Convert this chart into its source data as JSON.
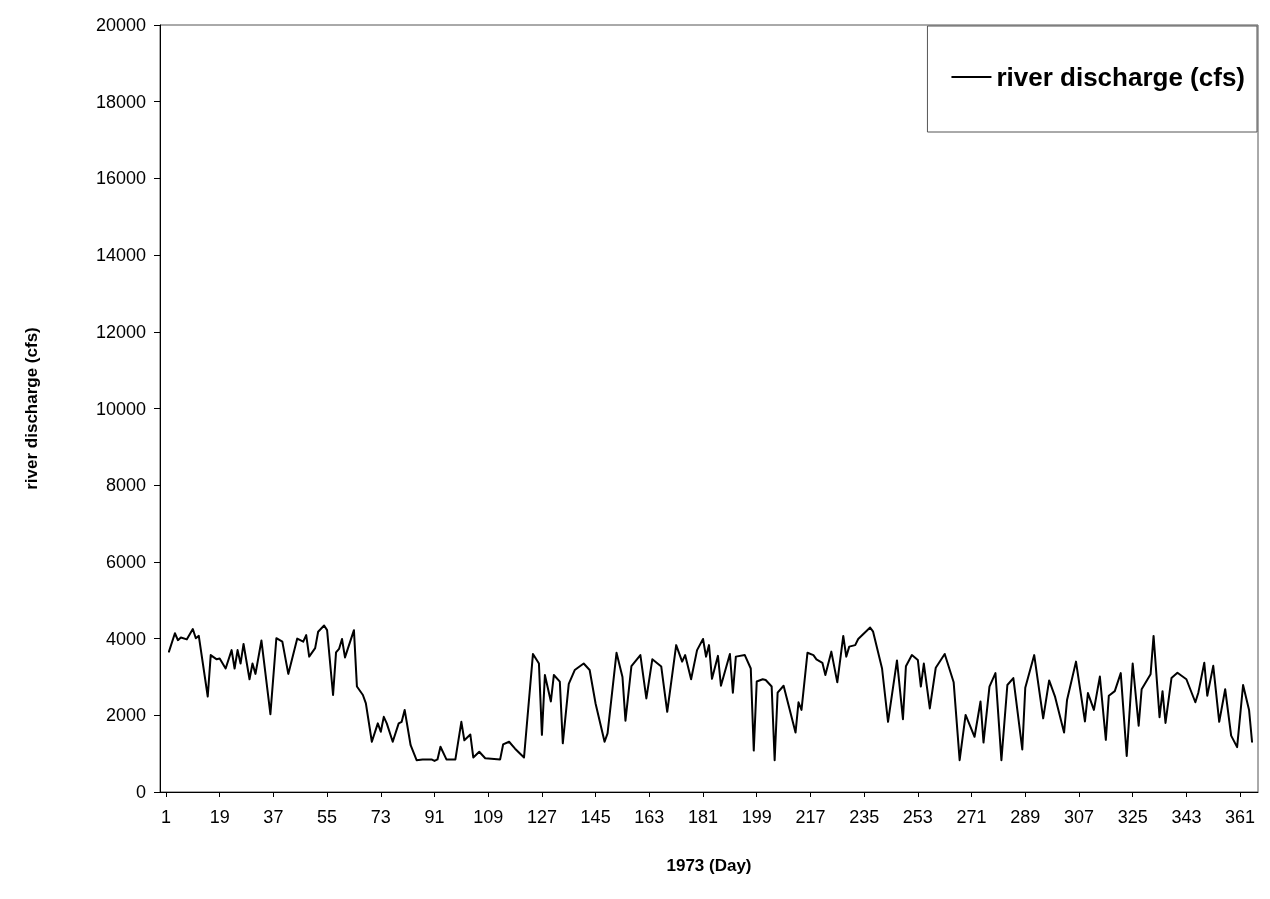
{
  "chart_data": {
    "type": "line",
    "xlabel": "1973 (Day)",
    "ylabel": "river discharge (cfs)",
    "xlim": [
      -1,
      367
    ],
    "xticks": [
      1,
      19,
      37,
      55,
      73,
      91,
      109,
      127,
      145,
      163,
      181,
      199,
      217,
      235,
      253,
      271,
      289,
      307,
      325,
      343,
      361
    ],
    "ylim": [
      0,
      20000
    ],
    "yticks": [
      0,
      2000,
      4000,
      6000,
      8000,
      10000,
      12000,
      14000,
      16000,
      18000,
      20000
    ],
    "grid": false,
    "legend": "top right",
    "marker": "none",
    "line_style": "solid",
    "series": [
      {
        "name": "river discharge (cfs)",
        "color": "#000000",
        "x": [
          2,
          4,
          5,
          6,
          8,
          10,
          11,
          12,
          15,
          16,
          18,
          19,
          21,
          23,
          24,
          25,
          26,
          27,
          29,
          30,
          31,
          33,
          36,
          38,
          40,
          42,
          45,
          47,
          48,
          49,
          51,
          52,
          54,
          55,
          57,
          58,
          59,
          60,
          61,
          64,
          65,
          67,
          68,
          70,
          72,
          73,
          74,
          75,
          77,
          79,
          80,
          81,
          83,
          85,
          87,
          90,
          91,
          92,
          93,
          95,
          98,
          100,
          101,
          103,
          104,
          106,
          108,
          113,
          114,
          116,
          118,
          121,
          124,
          126,
          127,
          128,
          130,
          131,
          133,
          134,
          136,
          138,
          141,
          143,
          145,
          148,
          149,
          152,
          154,
          155,
          157,
          160,
          162,
          164,
          167,
          169,
          172,
          174,
          175,
          177,
          179,
          181,
          182,
          183,
          184,
          186,
          187,
          190,
          191,
          192,
          195,
          197,
          198,
          199,
          201,
          202,
          204,
          205,
          206,
          208,
          212,
          213,
          214,
          216,
          218,
          219,
          221,
          222,
          224,
          226,
          228,
          229,
          230,
          232,
          233,
          237,
          238,
          241,
          243,
          246,
          248,
          249,
          251,
          253,
          254,
          255,
          257,
          259,
          262,
          265,
          267,
          269,
          272,
          274,
          275,
          277,
          279,
          281,
          283,
          285,
          288,
          289,
          292,
          295,
          297,
          299,
          302,
          303,
          306,
          309,
          310,
          312,
          314,
          316,
          317,
          319,
          321,
          323,
          325,
          327,
          328,
          331,
          332,
          334,
          335,
          336,
          338,
          340,
          343,
          346,
          347,
          349,
          350,
          352,
          354,
          356,
          358,
          360,
          362,
          364,
          365
        ],
        "values": [
          3660,
          4140,
          3960,
          4030,
          3980,
          4250,
          4010,
          4070,
          2490,
          3570,
          3460,
          3480,
          3220,
          3700,
          3220,
          3700,
          3350,
          3860,
          2940,
          3350,
          3080,
          3950,
          2030,
          4010,
          3920,
          3080,
          4000,
          3920,
          4090,
          3530,
          3750,
          4180,
          4340,
          4220,
          2530,
          3640,
          3730,
          3990,
          3510,
          4220,
          2750,
          2530,
          2310,
          1310,
          1790,
          1570,
          1960,
          1790,
          1310,
          1790,
          1830,
          2140,
          1220,
          830,
          850,
          850,
          810,
          850,
          1180,
          850,
          850,
          1830,
          1350,
          1500,
          900,
          1050,
          880,
          850,
          1240,
          1310,
          1130,
          900,
          3600,
          3350,
          1490,
          3050,
          2360,
          3050,
          2880,
          1270,
          2820,
          3180,
          3350,
          3180,
          2300,
          1310,
          1530,
          3630,
          3000,
          1860,
          3280,
          3570,
          2440,
          3460,
          3270,
          2090,
          3830,
          3400,
          3570,
          2940,
          3700,
          3990,
          3530,
          3830,
          2950,
          3550,
          2770,
          3600,
          2590,
          3530,
          3570,
          3220,
          1080,
          2880,
          2940,
          2920,
          2750,
          830,
          2590,
          2770,
          1550,
          2340,
          2140,
          3630,
          3570,
          3460,
          3370,
          3050,
          3660,
          2860,
          4070,
          3530,
          3790,
          3830,
          3990,
          4290,
          4180,
          3220,
          1830,
          3430,
          1900,
          3280,
          3570,
          3440,
          2750,
          3350,
          2180,
          3240,
          3600,
          2860,
          830,
          2010,
          1440,
          2360,
          1290,
          2750,
          3100,
          830,
          2790,
          2970,
          1110,
          2720,
          3570,
          1920,
          2910,
          2480,
          1550,
          2400,
          3400,
          1840,
          2580,
          2140,
          3010,
          1360,
          2510,
          2630,
          3100,
          940,
          3350,
          1730,
          2680,
          3070,
          4070,
          1950,
          2630,
          1800,
          2970,
          3110,
          2940,
          2340,
          2590,
          3370,
          2510,
          3290,
          1830,
          2680,
          1470,
          1170,
          2790,
          2140,
          1310
        ]
      }
    ]
  }
}
